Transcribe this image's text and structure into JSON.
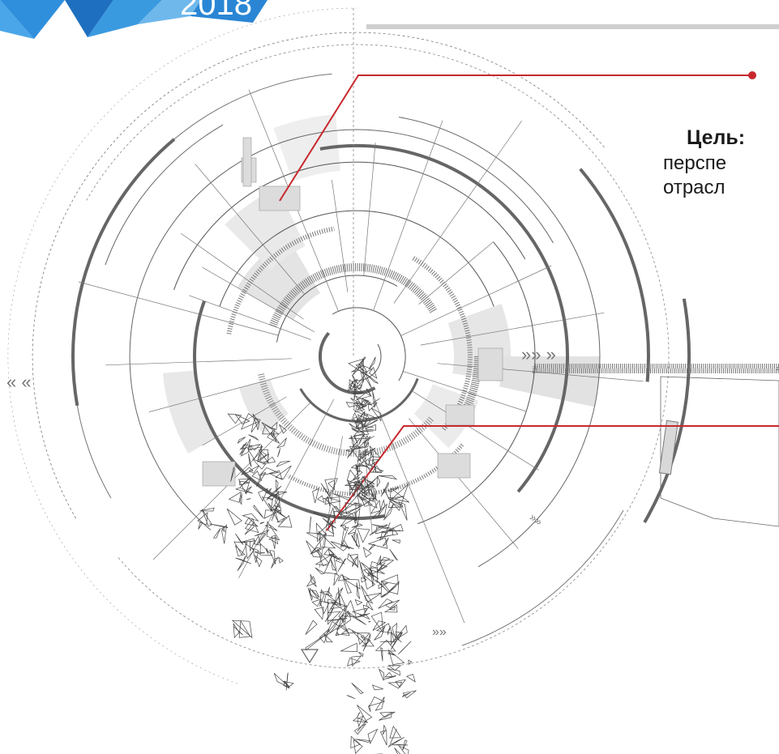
{
  "logo": {
    "year_text": "2018"
  },
  "goal": {
    "label": "Цель:",
    "line1": "перспе",
    "line2": "отрасл"
  },
  "decor": {
    "chevrons_left": "« «",
    "chevrons_right": "»» »",
    "chevrons_small": "»»"
  },
  "colors": {
    "accent": "#c8282d",
    "line_gray": "#555555",
    "light_gray": "#cccccc",
    "logo_blue": "#2a86d4"
  },
  "icons": [
    "logo-corner-icon",
    "radial-hud-graphic",
    "polygonal-mesh-hand-icon",
    "chevron-left-icon",
    "chevron-right-icon",
    "triangle-marker-icon"
  ]
}
